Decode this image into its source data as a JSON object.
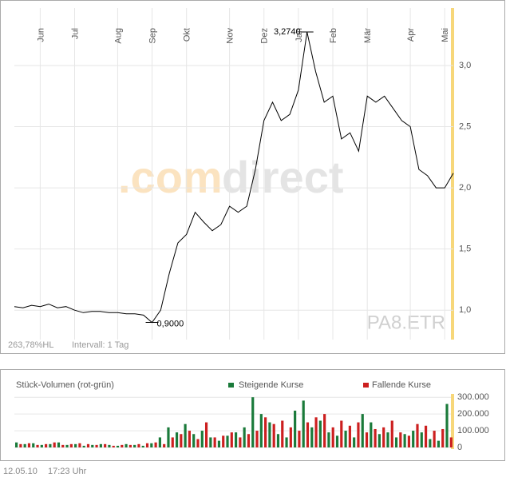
{
  "chart_data": [
    {
      "type": "line",
      "categories": [
        null,
        null,
        null,
        "Jun",
        null,
        null,
        null,
        "Jul",
        null,
        null,
        null,
        null,
        "Aug",
        null,
        null,
        null,
        "Sep",
        null,
        null,
        null,
        "Okt",
        null,
        null,
        null,
        null,
        "Nov",
        null,
        null,
        null,
        "Dez",
        null,
        null,
        null,
        "Jan",
        null,
        null,
        null,
        "Feb",
        null,
        null,
        null,
        "Mär",
        null,
        null,
        null,
        null,
        "Apr",
        null,
        null,
        null,
        "Mai",
        null
      ],
      "values": [
        1.03,
        1.02,
        1.04,
        1.03,
        1.05,
        1.02,
        1.03,
        1.0,
        0.98,
        0.99,
        0.99,
        0.98,
        0.98,
        0.97,
        0.97,
        0.96,
        0.9,
        1.0,
        1.3,
        1.55,
        1.62,
        1.8,
        1.72,
        1.65,
        1.7,
        1.85,
        1.8,
        1.85,
        2.15,
        2.55,
        2.7,
        2.55,
        2.6,
        2.8,
        3.274,
        2.95,
        2.7,
        2.75,
        2.4,
        2.45,
        2.3,
        2.75,
        2.7,
        2.75,
        2.65,
        2.55,
        2.5,
        2.15,
        2.1,
        2.0,
        2.0,
        2.12
      ],
      "value_labels": [
        null,
        null,
        null,
        null,
        null,
        null,
        null,
        null,
        null,
        null,
        null,
        null,
        null,
        null,
        null,
        null,
        "0,9000",
        null,
        null,
        null,
        null,
        null,
        null,
        null,
        null,
        null,
        null,
        null,
        null,
        null,
        null,
        null,
        null,
        null,
        "3,2740",
        null,
        null,
        null,
        null,
        null,
        null,
        null,
        null,
        null,
        null,
        null,
        null,
        null,
        null,
        null,
        null,
        null
      ],
      "color": "#000000",
      "ylim": [
        0.76,
        3.47
      ],
      "yticks": [
        {
          "value": 1,
          "label": "1,0"
        },
        {
          "value": 1.5,
          "label": "1,5"
        },
        {
          "value": 2,
          "label": "2,0"
        },
        {
          "value": 2.5,
          "label": "2,5"
        },
        {
          "value": 3,
          "label": "3,0"
        }
      ],
      "grid": true,
      "watermark": [
        ".com",
        "direct"
      ],
      "symbol": "PA8.ETR",
      "range_note": "263,78%HL",
      "interval": "Intervall: 1 Tag"
    },
    {
      "type": "bar",
      "title": "Stück-Volumen (rot-grün)",
      "series": [
        {
          "name": "Steigende Kurse",
          "color": "#1a7a3a",
          "values": [
            30000,
            20000,
            25000,
            15000,
            20000,
            30000,
            15000,
            20000,
            10000,
            15000,
            20000,
            15000,
            10000,
            20000,
            15000,
            10000,
            25000,
            60000,
            120000,
            90000,
            140000,
            80000,
            100000,
            60000,
            40000,
            70000,
            90000,
            120000,
            300000,
            200000,
            150000,
            80000,
            60000,
            220000,
            280000,
            120000,
            160000,
            90000,
            70000,
            100000,
            60000,
            200000,
            150000,
            80000,
            90000,
            60000,
            80000,
            100000,
            90000,
            50000,
            40000,
            260000
          ]
        },
        {
          "name": "Fallende Kurse",
          "color": "#cc1f1f",
          "values": [
            20000,
            25000,
            15000,
            20000,
            30000,
            15000,
            20000,
            25000,
            20000,
            15000,
            20000,
            10000,
            15000,
            15000,
            20000,
            25000,
            30000,
            20000,
            60000,
            80000,
            100000,
            50000,
            150000,
            60000,
            70000,
            90000,
            60000,
            80000,
            100000,
            180000,
            140000,
            160000,
            120000,
            100000,
            150000,
            180000,
            200000,
            120000,
            160000,
            130000,
            150000,
            90000,
            110000,
            120000,
            160000,
            90000,
            70000,
            140000,
            130000,
            100000,
            110000,
            60000
          ]
        }
      ],
      "ylim": [
        0,
        320000
      ],
      "yticks": [
        0,
        {
          "value": 100000,
          "label": "100.000"
        },
        {
          "value": 200000,
          "label": "200.000"
        },
        {
          "value": 300000,
          "label": "300.000"
        }
      ],
      "grid": true
    },
    {
      "type": "footer",
      "date": "12.05.10",
      "time": "17:23 Uhr"
    }
  ]
}
